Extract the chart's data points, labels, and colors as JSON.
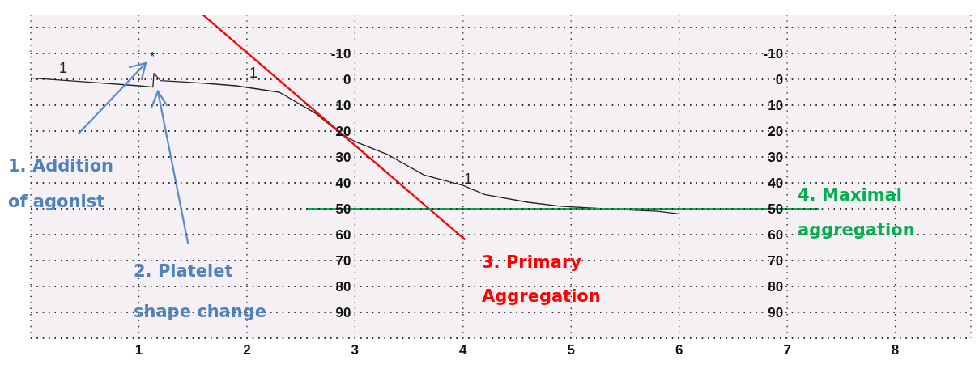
{
  "chart_data": {
    "type": "line",
    "xlim": [
      0,
      8.7
    ],
    "xticks": [
      1,
      2,
      3,
      4,
      5,
      6,
      7,
      8
    ],
    "ylim": [
      100,
      -25
    ],
    "yticks": [
      {
        "value": -20,
        "label": null
      },
      -10,
      0,
      10,
      20,
      30,
      40,
      50,
      60,
      70,
      80,
      90,
      {
        "value": 100,
        "label": null
      }
    ],
    "y2lim": [
      100,
      -25
    ],
    "y2ticks": [
      {
        "value": -20,
        "label": null
      },
      -10,
      0,
      10,
      20,
      30,
      40,
      50,
      60,
      70,
      80,
      90,
      {
        "value": 100,
        "label": null
      }
    ],
    "grid": true,
    "marker": "none",
    "line_style": "solid",
    "series": [
      {
        "color": "#222222",
        "x": [
          0,
          0.5,
          1.0,
          1.13,
          1.14,
          1.2,
          1.4,
          1.6,
          1.9,
          2.3,
          2.63,
          2.87,
          3.0,
          3.3,
          3.64,
          4.0,
          4.2,
          4.6,
          4.9,
          5.3,
          5.8,
          6.0
        ],
        "values": [
          -0.5,
          1,
          2.5,
          3,
          -2.3,
          0.5,
          1,
          1.5,
          2.5,
          5,
          13,
          21,
          24,
          29,
          37,
          41,
          44.5,
          47.5,
          49,
          50,
          51,
          52
        ]
      },
      {
        "color": "#ff0000",
        "x": [
          1.59,
          4.02
        ],
        "values": [
          -25,
          62
        ]
      },
      {
        "color": "#00b050",
        "x": [
          2.55,
          7.3
        ],
        "values": [
          50,
          50
        ]
      }
    ],
    "annotations": [
      "1. Addition of agonist",
      "2. Platelet shape change",
      "3. Primary Aggregation",
      "4. Maximal aggregation",
      "*",
      "1",
      "1",
      "1"
    ]
  }
}
